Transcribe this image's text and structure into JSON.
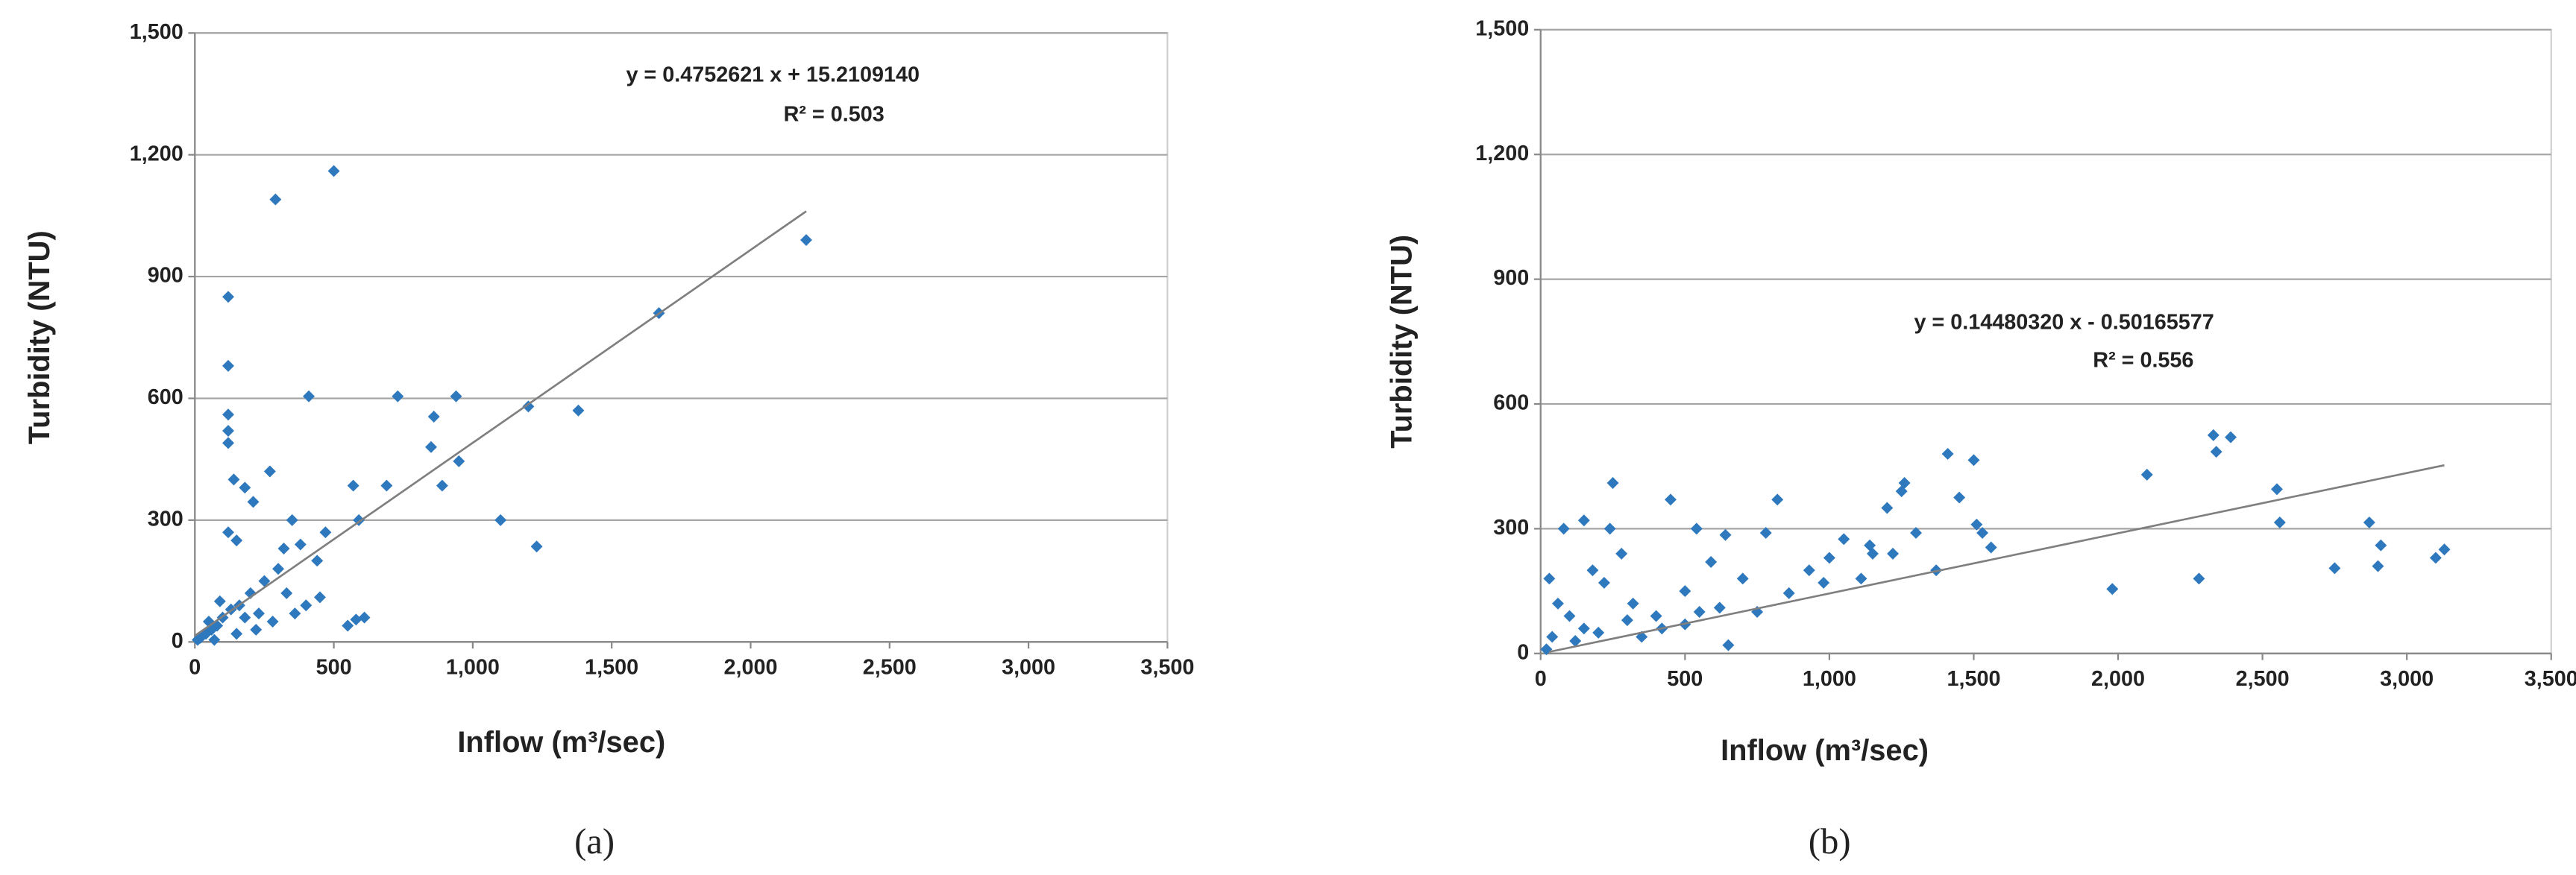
{
  "chart_data": [
    {
      "type": "scatter",
      "panel_label": "(a)",
      "x_label": "Inflow (m³/sec)",
      "y_label": "Turbidity (NTU)",
      "equation": "y = 0.4752621 x + 15.2109140",
      "r_squared": "R² = 0.503",
      "color": "#2e78bd",
      "trendline_color": "#7f7f7f",
      "grid": true,
      "trendline": {
        "x": [
          0,
          2200
        ],
        "slope": 0.4752621,
        "intercept": 15.210914
      },
      "xlim": [
        0,
        3500
      ],
      "xticks": [
        0,
        500,
        {
          "value": 1000,
          "label": "1,000"
        },
        {
          "value": 1500,
          "label": "1,500"
        },
        {
          "value": 2000,
          "label": "2,000"
        },
        {
          "value": 2500,
          "label": "2,500"
        },
        {
          "value": 3000,
          "label": "3,000"
        },
        {
          "value": 3500,
          "label": "3,500"
        }
      ],
      "ylim": [
        0,
        1500
      ],
      "yticks": [
        0,
        300,
        600,
        900,
        {
          "value": 1200,
          "label": "1,200"
        },
        {
          "value": 1500,
          "label": "1,500"
        }
      ],
      "x": [
        2200,
        1670,
        1380,
        1200,
        1230,
        1100,
        940,
        950,
        890,
        860,
        850,
        730,
        690,
        590,
        570,
        580,
        610,
        550,
        500,
        290,
        410,
        120,
        120,
        120,
        120,
        120,
        140,
        180,
        210,
        120,
        150,
        350,
        380,
        320,
        270,
        450,
        470,
        440,
        300,
        250,
        200,
        160,
        100,
        80,
        60,
        40,
        20,
        50,
        90,
        130,
        180,
        230,
        280,
        330,
        400,
        360,
        220,
        150,
        70,
        10
      ],
      "y": [
        990,
        810,
        570,
        580,
        235,
        300,
        605,
        445,
        385,
        555,
        480,
        605,
        385,
        300,
        385,
        55,
        60,
        40,
        1160,
        1090,
        605,
        850,
        680,
        560,
        520,
        490,
        400,
        380,
        345,
        270,
        250,
        300,
        240,
        230,
        420,
        110,
        270,
        200,
        180,
        150,
        120,
        90,
        60,
        40,
        30,
        20,
        10,
        50,
        100,
        80,
        60,
        70,
        50,
        120,
        90,
        70,
        30,
        20,
        5,
        5
      ]
    },
    {
      "type": "scatter",
      "panel_label": "(b)",
      "x_label": "Inflow (m³/sec)",
      "y_label": "Turbidity (NTU)",
      "equation": "y = 0.14480320 x - 0.50165577",
      "r_squared": "R² = 0.556",
      "color": "#2e78bd",
      "trendline_color": "#7f7f7f",
      "grid": true,
      "trendline": {
        "x": [
          30,
          3130
        ],
        "slope": 0.1448032,
        "intercept": -0.50165577
      },
      "xlim": [
        0,
        3500
      ],
      "xticks": [
        0,
        500,
        {
          "value": 1000,
          "label": "1,000"
        },
        {
          "value": 1500,
          "label": "1,500"
        },
        {
          "value": 2000,
          "label": "2,000"
        },
        {
          "value": 2500,
          "label": "2,500"
        },
        {
          "value": 3000,
          "label": "3,000"
        },
        {
          "value": 3500,
          "label": "3,500"
        }
      ],
      "ylim": [
        0,
        1500
      ],
      "yticks": [
        0,
        300,
        600,
        900,
        {
          "value": 1200,
          "label": "1,200"
        },
        {
          "value": 1500,
          "label": "1,500"
        }
      ],
      "x": [
        3130,
        3100,
        2900,
        2910,
        2870,
        2750,
        2560,
        2550,
        2390,
        2330,
        2340,
        2280,
        2100,
        1980,
        1560,
        1530,
        1510,
        1500,
        1450,
        1410,
        1370,
        1300,
        1260,
        1250,
        1220,
        1200,
        1150,
        1140,
        1110,
        1050,
        1000,
        980,
        930,
        860,
        820,
        780,
        750,
        700,
        640,
        620,
        590,
        540,
        500,
        450,
        400,
        250,
        240,
        280,
        220,
        150,
        80,
        30,
        60,
        100,
        150,
        200,
        300,
        350,
        420,
        500,
        550,
        650,
        120,
        40,
        20,
        180,
        320
      ],
      "y": [
        250,
        230,
        210,
        260,
        315,
        205,
        315,
        395,
        520,
        525,
        485,
        180,
        430,
        155,
        255,
        290,
        310,
        465,
        375,
        480,
        200,
        290,
        410,
        390,
        240,
        350,
        240,
        260,
        180,
        275,
        230,
        170,
        200,
        145,
        370,
        290,
        100,
        180,
        285,
        110,
        220,
        300,
        150,
        370,
        90,
        410,
        300,
        240,
        170,
        320,
        300,
        180,
        120,
        90,
        60,
        50,
        80,
        40,
        60,
        70,
        100,
        20,
        30,
        40,
        10,
        200,
        120
      ]
    }
  ]
}
